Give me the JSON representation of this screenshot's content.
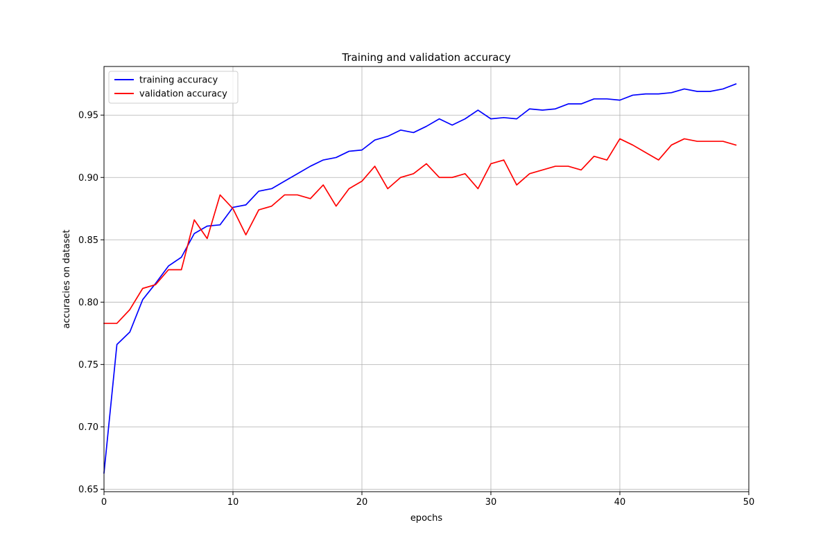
{
  "chart_data": {
    "type": "line",
    "title": "Training and validation accuracy",
    "xlabel": "epochs",
    "ylabel": "accuracies on dataset",
    "xlim": [
      0,
      50
    ],
    "ylim": [
      0.648,
      0.989
    ],
    "xticks": [
      0,
      10,
      20,
      30,
      40,
      50
    ],
    "yticks": [
      0.65,
      0.7,
      0.75,
      0.8,
      0.85,
      0.9,
      0.95
    ],
    "ytick_labels": [
      "0.65",
      "0.70",
      "0.75",
      "0.80",
      "0.85",
      "0.90",
      "0.95"
    ],
    "grid": true,
    "legend_position": "top-left",
    "x": [
      0,
      1,
      2,
      3,
      4,
      5,
      6,
      7,
      8,
      9,
      10,
      11,
      12,
      13,
      14,
      15,
      16,
      17,
      18,
      19,
      20,
      21,
      22,
      23,
      24,
      25,
      26,
      27,
      28,
      29,
      30,
      31,
      32,
      33,
      34,
      35,
      36,
      37,
      38,
      39,
      40,
      41,
      42,
      43,
      44,
      45,
      46,
      47,
      48,
      49
    ],
    "series": [
      {
        "name": "training accuracy",
        "color": "#0000ff",
        "values": [
          0.663,
          0.766,
          0.776,
          0.802,
          0.815,
          0.829,
          0.836,
          0.855,
          0.861,
          0.862,
          0.876,
          0.878,
          0.889,
          0.891,
          0.897,
          0.903,
          0.909,
          0.914,
          0.916,
          0.921,
          0.922,
          0.93,
          0.933,
          0.938,
          0.936,
          0.941,
          0.947,
          0.942,
          0.947,
          0.954,
          0.947,
          0.948,
          0.947,
          0.955,
          0.954,
          0.955,
          0.959,
          0.959,
          0.963,
          0.963,
          0.962,
          0.966,
          0.967,
          0.967,
          0.968,
          0.971,
          0.969,
          0.969,
          0.971,
          0.975
        ]
      },
      {
        "name": "validation accuracy",
        "color": "#ff0000",
        "values": [
          0.783,
          0.783,
          0.794,
          0.811,
          0.814,
          0.826,
          0.826,
          0.866,
          0.851,
          0.886,
          0.875,
          0.854,
          0.874,
          0.877,
          0.886,
          0.886,
          0.883,
          0.894,
          0.877,
          0.891,
          0.897,
          0.909,
          0.891,
          0.9,
          0.903,
          0.911,
          0.9,
          0.9,
          0.903,
          0.891,
          0.911,
          0.914,
          0.894,
          0.903,
          0.906,
          0.909,
          0.909,
          0.906,
          0.917,
          0.914,
          0.931,
          0.926,
          0.92,
          0.914,
          0.926,
          0.931,
          0.929,
          0.929,
          0.929,
          0.926
        ]
      }
    ]
  }
}
